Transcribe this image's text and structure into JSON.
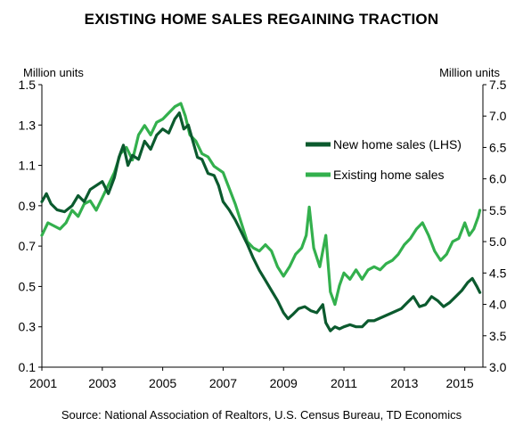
{
  "title": "EXISTING HOME SALES REGAINING TRACTION",
  "source": "Source: National Association of Realtors, U.S. Census Bureau, TD Economics",
  "chart_data": {
    "type": "line",
    "left_axis_label": "Million units",
    "right_axis_label": "Million units",
    "x_ticks": [
      "2001",
      "2003",
      "2005",
      "2007",
      "2009",
      "2011",
      "2013",
      "2015"
    ],
    "y_left": {
      "lim": [
        0.1,
        1.5
      ],
      "ticks": [
        "0.1",
        "0.3",
        "0.5",
        "0.7",
        "0.9",
        "1.1",
        "1.3",
        "1.5"
      ]
    },
    "y_right": {
      "lim": [
        3.0,
        7.5
      ],
      "ticks": [
        "3.0",
        "3.5",
        "4.0",
        "4.5",
        "5.0",
        "5.5",
        "6.0",
        "6.5",
        "7.0",
        "7.5"
      ]
    },
    "grid": false,
    "legend_position": "upper-right",
    "series": [
      {
        "name": "New home sales (LHS)",
        "axis": "left",
        "color": "#0b5a2e",
        "points": [
          [
            2001.0,
            0.92
          ],
          [
            2001.15,
            0.96
          ],
          [
            2001.3,
            0.91
          ],
          [
            2001.5,
            0.88
          ],
          [
            2001.75,
            0.87
          ],
          [
            2002.0,
            0.9
          ],
          [
            2002.2,
            0.95
          ],
          [
            2002.4,
            0.92
          ],
          [
            2002.6,
            0.98
          ],
          [
            2002.8,
            1.0
          ],
          [
            2003.0,
            1.02
          ],
          [
            2003.2,
            0.96
          ],
          [
            2003.4,
            1.04
          ],
          [
            2003.55,
            1.14
          ],
          [
            2003.7,
            1.2
          ],
          [
            2003.85,
            1.1
          ],
          [
            2004.0,
            1.15
          ],
          [
            2004.2,
            1.13
          ],
          [
            2004.4,
            1.22
          ],
          [
            2004.6,
            1.18
          ],
          [
            2004.8,
            1.25
          ],
          [
            2005.0,
            1.28
          ],
          [
            2005.2,
            1.26
          ],
          [
            2005.4,
            1.33
          ],
          [
            2005.55,
            1.36
          ],
          [
            2005.7,
            1.28
          ],
          [
            2005.85,
            1.3
          ],
          [
            2006.0,
            1.22
          ],
          [
            2006.15,
            1.14
          ],
          [
            2006.3,
            1.13
          ],
          [
            2006.5,
            1.06
          ],
          [
            2006.7,
            1.05
          ],
          [
            2006.85,
            1.0
          ],
          [
            2007.0,
            0.92
          ],
          [
            2007.2,
            0.88
          ],
          [
            2007.4,
            0.83
          ],
          [
            2007.6,
            0.77
          ],
          [
            2007.8,
            0.71
          ],
          [
            2008.0,
            0.64
          ],
          [
            2008.2,
            0.58
          ],
          [
            2008.4,
            0.53
          ],
          [
            2008.6,
            0.48
          ],
          [
            2008.8,
            0.43
          ],
          [
            2009.0,
            0.37
          ],
          [
            2009.15,
            0.34
          ],
          [
            2009.3,
            0.36
          ],
          [
            2009.5,
            0.39
          ],
          [
            2009.7,
            0.4
          ],
          [
            2009.9,
            0.38
          ],
          [
            2010.1,
            0.37
          ],
          [
            2010.3,
            0.41
          ],
          [
            2010.4,
            0.32
          ],
          [
            2010.55,
            0.28
          ],
          [
            2010.7,
            0.3
          ],
          [
            2010.85,
            0.29
          ],
          [
            2011.0,
            0.3
          ],
          [
            2011.2,
            0.31
          ],
          [
            2011.4,
            0.3
          ],
          [
            2011.6,
            0.3
          ],
          [
            2011.8,
            0.33
          ],
          [
            2012.0,
            0.33
          ],
          [
            2012.3,
            0.35
          ],
          [
            2012.6,
            0.37
          ],
          [
            2012.9,
            0.39
          ],
          [
            2013.1,
            0.42
          ],
          [
            2013.3,
            0.45
          ],
          [
            2013.5,
            0.4
          ],
          [
            2013.7,
            0.41
          ],
          [
            2013.9,
            0.45
          ],
          [
            2014.1,
            0.43
          ],
          [
            2014.3,
            0.4
          ],
          [
            2014.5,
            0.42
          ],
          [
            2014.7,
            0.45
          ],
          [
            2014.9,
            0.48
          ],
          [
            2015.1,
            0.52
          ],
          [
            2015.25,
            0.54
          ],
          [
            2015.4,
            0.5
          ],
          [
            2015.5,
            0.47
          ]
        ]
      },
      {
        "name": "Existing home sales",
        "axis": "right",
        "color": "#33b04d",
        "points": [
          [
            2001.0,
            5.1
          ],
          [
            2001.2,
            5.3
          ],
          [
            2001.4,
            5.25
          ],
          [
            2001.6,
            5.2
          ],
          [
            2001.8,
            5.3
          ],
          [
            2002.0,
            5.5
          ],
          [
            2002.2,
            5.4
          ],
          [
            2002.4,
            5.6
          ],
          [
            2002.6,
            5.65
          ],
          [
            2002.8,
            5.5
          ],
          [
            2003.0,
            5.7
          ],
          [
            2003.2,
            5.9
          ],
          [
            2003.4,
            6.1
          ],
          [
            2003.6,
            6.4
          ],
          [
            2003.8,
            6.5
          ],
          [
            2004.0,
            6.3
          ],
          [
            2004.2,
            6.7
          ],
          [
            2004.4,
            6.85
          ],
          [
            2004.6,
            6.7
          ],
          [
            2004.8,
            6.9
          ],
          [
            2005.0,
            6.95
          ],
          [
            2005.2,
            7.05
          ],
          [
            2005.4,
            7.15
          ],
          [
            2005.6,
            7.2
          ],
          [
            2005.75,
            7.0
          ],
          [
            2005.9,
            6.7
          ],
          [
            2006.1,
            6.6
          ],
          [
            2006.3,
            6.4
          ],
          [
            2006.5,
            6.35
          ],
          [
            2006.7,
            6.2
          ],
          [
            2006.85,
            6.15
          ],
          [
            2007.0,
            6.1
          ],
          [
            2007.2,
            5.85
          ],
          [
            2007.4,
            5.6
          ],
          [
            2007.6,
            5.3
          ],
          [
            2007.8,
            5.0
          ],
          [
            2008.0,
            4.9
          ],
          [
            2008.2,
            4.85
          ],
          [
            2008.4,
            4.95
          ],
          [
            2008.6,
            4.85
          ],
          [
            2008.8,
            4.6
          ],
          [
            2009.0,
            4.45
          ],
          [
            2009.2,
            4.6
          ],
          [
            2009.4,
            4.8
          ],
          [
            2009.6,
            4.9
          ],
          [
            2009.75,
            5.1
          ],
          [
            2009.85,
            5.55
          ],
          [
            2010.0,
            4.9
          ],
          [
            2010.2,
            4.6
          ],
          [
            2010.4,
            5.1
          ],
          [
            2010.55,
            4.2
          ],
          [
            2010.7,
            4.0
          ],
          [
            2010.85,
            4.3
          ],
          [
            2011.0,
            4.5
          ],
          [
            2011.2,
            4.4
          ],
          [
            2011.4,
            4.55
          ],
          [
            2011.6,
            4.4
          ],
          [
            2011.8,
            4.55
          ],
          [
            2012.0,
            4.6
          ],
          [
            2012.2,
            4.55
          ],
          [
            2012.4,
            4.65
          ],
          [
            2012.6,
            4.7
          ],
          [
            2012.8,
            4.8
          ],
          [
            2013.0,
            4.95
          ],
          [
            2013.2,
            5.05
          ],
          [
            2013.4,
            5.2
          ],
          [
            2013.6,
            5.3
          ],
          [
            2013.8,
            5.1
          ],
          [
            2014.0,
            4.85
          ],
          [
            2014.2,
            4.7
          ],
          [
            2014.4,
            4.8
          ],
          [
            2014.6,
            5.0
          ],
          [
            2014.8,
            5.05
          ],
          [
            2015.0,
            5.3
          ],
          [
            2015.15,
            5.1
          ],
          [
            2015.3,
            5.2
          ],
          [
            2015.45,
            5.4
          ],
          [
            2015.5,
            5.5
          ]
        ]
      }
    ]
  }
}
